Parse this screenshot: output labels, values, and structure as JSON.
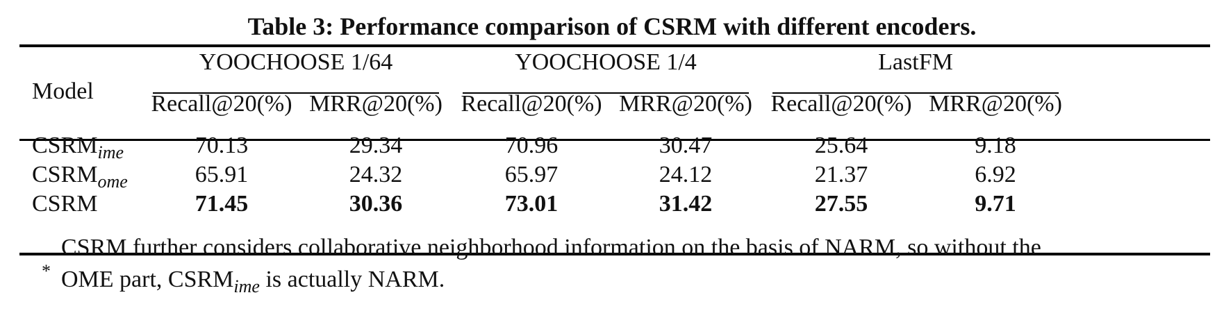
{
  "caption": "Table 3: Performance comparison of CSRM with different encoders.",
  "header": {
    "model": "Model",
    "datasets": [
      "YOOCHOOSE 1/64",
      "YOOCHOOSE 1/4",
      "LastFM"
    ],
    "metrics": [
      "Recall@20(%)",
      "MRR@20(%)",
      "Recall@20(%)",
      "MRR@20(%)",
      "Recall@20(%)",
      "MRR@20(%)"
    ]
  },
  "rows": [
    {
      "base": "CSRM",
      "sub": "ime",
      "values": [
        "70.13",
        "29.34",
        "70.96",
        "30.47",
        "25.64",
        "9.18"
      ]
    },
    {
      "base": "CSRM",
      "sub": "ome",
      "values": [
        "65.91",
        "24.32",
        "65.97",
        "24.12",
        "21.37",
        "6.92"
      ]
    },
    {
      "base": "CSRM",
      "sub": "",
      "values": [
        "71.45",
        "30.36",
        "73.01",
        "31.42",
        "27.55",
        "9.71"
      ]
    }
  ],
  "footnote": {
    "marker": "*",
    "line1": "CSRM further considers collaborative neighborhood information on the basis of NARM, so without the",
    "line2_pre": "OME part, CSRM",
    "line2_sub": "ime",
    "line2_post": " is actually NARM."
  }
}
